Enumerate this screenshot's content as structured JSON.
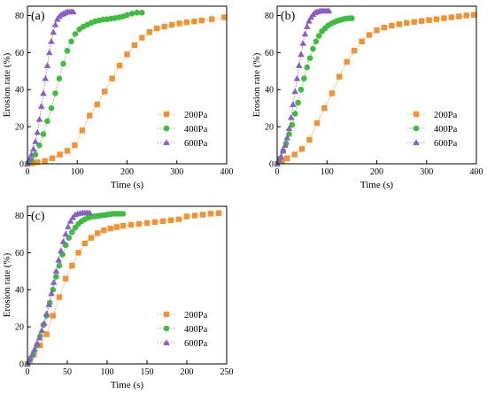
{
  "colors": {
    "200Pa": "#F39230",
    "400Pa": "#3DBE3D",
    "600Pa": "#8A5DC9"
  },
  "chart_data": [
    {
      "type": "scatter",
      "panel_label": "(a)",
      "xlabel": "Time (s)",
      "ylabel": "Erosion rate (%)",
      "xlim": [
        0,
        400
      ],
      "ylim": [
        0,
        85
      ],
      "xticks": [
        0,
        100,
        200,
        300,
        400
      ],
      "yticks": [
        0,
        20,
        40,
        60,
        80
      ],
      "legend_position": "bottom-right",
      "grid": false,
      "series": [
        {
          "name": "200Pa",
          "marker": "square",
          "x": [
            0,
            10,
            20,
            35,
            50,
            65,
            80,
            95,
            110,
            125,
            140,
            155,
            170,
            185,
            200,
            215,
            230,
            245,
            260,
            275,
            290,
            305,
            320,
            335,
            350,
            370,
            395
          ],
          "y": [
            0,
            0.3,
            0.8,
            1.5,
            3,
            5,
            7,
            10,
            18,
            26,
            32,
            39,
            46,
            53,
            59,
            64,
            68,
            71,
            73,
            74,
            75,
            75.7,
            76.3,
            76.8,
            77.3,
            78,
            79
          ]
        },
        {
          "name": "400Pa",
          "marker": "circle",
          "x": [
            0,
            8,
            16,
            24,
            32,
            40,
            48,
            56,
            64,
            72,
            80,
            88,
            96,
            104,
            112,
            120,
            128,
            136,
            144,
            152,
            160,
            168,
            176,
            184,
            192,
            200,
            210,
            220,
            230
          ],
          "y": [
            0,
            2,
            5,
            10,
            16,
            23,
            30,
            38,
            46,
            54,
            61,
            66,
            70,
            72.5,
            74,
            75,
            76,
            76.8,
            77.3,
            77.8,
            78,
            78.3,
            78.6,
            79,
            79.5,
            80.2,
            81,
            81.5,
            81.5
          ]
        },
        {
          "name": "600Pa",
          "marker": "triangle",
          "x": [
            0,
            4,
            8,
            12,
            16,
            20,
            24,
            28,
            32,
            36,
            40,
            44,
            48,
            52,
            56,
            60,
            64,
            68,
            72,
            76,
            80,
            84,
            88,
            92
          ],
          "y": [
            0,
            2.5,
            5,
            8,
            12,
            17,
            24,
            31,
            38,
            46,
            53,
            60,
            66,
            71,
            75,
            78,
            79.5,
            80.5,
            81,
            81.5,
            82,
            82,
            82,
            82
          ]
        }
      ]
    },
    {
      "type": "scatter",
      "panel_label": "(b)",
      "xlabel": "Time (s)",
      "ylabel": "Erosion rate (%)",
      "xlim": [
        0,
        400
      ],
      "ylim": [
        0,
        85
      ],
      "xticks": [
        0,
        100,
        200,
        300,
        400
      ],
      "yticks": [
        0,
        20,
        40,
        60,
        80
      ],
      "legend_position": "bottom-right",
      "grid": false,
      "series": [
        {
          "name": "200Pa",
          "marker": "square",
          "x": [
            0,
            10,
            20,
            35,
            50,
            65,
            80,
            95,
            110,
            125,
            140,
            155,
            170,
            185,
            200,
            215,
            230,
            245,
            260,
            275,
            290,
            305,
            320,
            335,
            350,
            365,
            380,
            395
          ],
          "y": [
            0,
            1.5,
            3,
            5,
            8,
            13,
            22,
            30,
            38,
            47,
            55,
            61,
            66,
            69.5,
            72,
            73.5,
            74.5,
            75.3,
            76,
            76.5,
            77,
            77.5,
            78,
            78.5,
            79,
            79.5,
            80,
            80.3
          ]
        },
        {
          "name": "400Pa",
          "marker": "circle",
          "x": [
            0,
            6,
            12,
            18,
            24,
            30,
            36,
            42,
            48,
            54,
            60,
            66,
            72,
            78,
            84,
            90,
            96,
            102,
            108,
            114,
            120,
            126,
            132,
            138,
            144,
            150
          ],
          "y": [
            0,
            3,
            7,
            11,
            16,
            21,
            27,
            33,
            40,
            46,
            52,
            57,
            62,
            66,
            69,
            71.5,
            73,
            74.5,
            75.5,
            76.3,
            77,
            77.5,
            78,
            78.3,
            78.5,
            78.5
          ]
        },
        {
          "name": "600Pa",
          "marker": "triangle",
          "x": [
            0,
            4,
            8,
            12,
            16,
            20,
            24,
            28,
            32,
            36,
            40,
            44,
            48,
            52,
            56,
            60,
            64,
            68,
            72,
            76,
            80,
            84,
            88,
            92,
            96,
            100,
            104
          ],
          "y": [
            0,
            2,
            4,
            7,
            10,
            14,
            19,
            25,
            32,
            39,
            46,
            53,
            59,
            65,
            70,
            74,
            77,
            79,
            80.5,
            81.5,
            82,
            82.3,
            82.5,
            82.5,
            82.5,
            82.5,
            82.5
          ]
        }
      ]
    },
    {
      "type": "scatter",
      "panel_label": "(c)",
      "xlabel": "Time (s)",
      "ylabel": "Erosion rate (%)",
      "xlim": [
        0,
        250
      ],
      "ylim": [
        0,
        85
      ],
      "xticks": [
        0,
        50,
        100,
        150,
        200,
        250
      ],
      "yticks": [
        0,
        20,
        40,
        60,
        80
      ],
      "legend_position": "bottom-right",
      "grid": false,
      "series": [
        {
          "name": "200Pa",
          "marker": "square",
          "x": [
            0,
            8,
            16,
            24,
            32,
            40,
            48,
            56,
            64,
            72,
            80,
            88,
            96,
            104,
            112,
            120,
            130,
            140,
            150,
            160,
            170,
            180,
            190,
            200,
            210,
            220,
            230,
            240
          ],
          "y": [
            0,
            5,
            10,
            16,
            26,
            36,
            46,
            53,
            60,
            65,
            68,
            70.5,
            72,
            73,
            73.8,
            74.5,
            75,
            75.5,
            76,
            76.5,
            77,
            77.5,
            78,
            79.5,
            80,
            80.5,
            81,
            81.3
          ]
        },
        {
          "name": "400Pa",
          "marker": "circle",
          "x": [
            0,
            4,
            8,
            12,
            16,
            20,
            24,
            28,
            32,
            36,
            40,
            44,
            48,
            52,
            56,
            60,
            64,
            68,
            72,
            76,
            80,
            84,
            88,
            92,
            96,
            100,
            104,
            108,
            112,
            116,
            120
          ],
          "y": [
            0,
            3,
            6,
            10,
            15,
            21,
            26,
            33,
            40,
            47,
            53,
            59,
            64,
            68,
            71,
            73.5,
            75.5,
            77,
            78,
            78.8,
            79.3,
            79.6,
            79.8,
            80,
            80.2,
            80.5,
            80.8,
            81,
            81,
            81,
            81
          ]
        },
        {
          "name": "600Pa",
          "marker": "triangle",
          "x": [
            0,
            3,
            6,
            9,
            12,
            15,
            18,
            21,
            24,
            27,
            30,
            33,
            36,
            39,
            42,
            45,
            48,
            51,
            54,
            57,
            60,
            63,
            66,
            69,
            72,
            75,
            78
          ],
          "y": [
            0,
            2,
            5,
            8,
            11,
            14,
            18,
            22,
            27,
            32,
            38,
            44,
            50,
            56,
            61,
            66,
            70,
            74,
            77,
            79,
            80.5,
            81,
            81.3,
            81.5,
            81.5,
            81.5,
            81.5
          ]
        }
      ]
    }
  ]
}
